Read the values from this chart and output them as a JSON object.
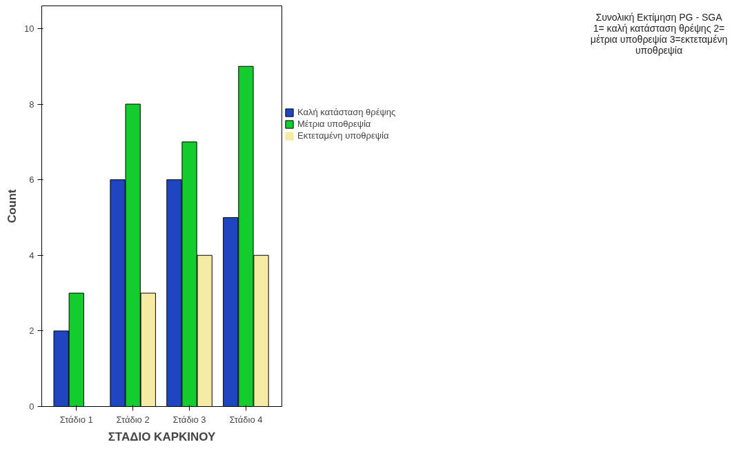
{
  "chart_data": {
    "type": "bar",
    "xlabel": "ΣΤΑΔΙΟ ΚΑΡΚΙΝΟΥ",
    "ylabel": "Count",
    "legend_title": "Συνολική Εκτίμηση PG - SGA 1= καλή κατάσταση θρέψης 2= μέτρια υποθρεψία 3=εκτεταμένη υποθρεψία",
    "categories": [
      "Στάδιο 1",
      "Στάδιο 2",
      "Στάδιο 3",
      "Στάδιο 4"
    ],
    "series": [
      {
        "name": "Καλή κατάσταση θρέψης",
        "color": "#1f46c0",
        "values": [
          2,
          6,
          6,
          5
        ]
      },
      {
        "name": "Μέτρια υποθρεψία",
        "color": "#13cc2e",
        "values": [
          3,
          8,
          7,
          9
        ]
      },
      {
        "name": "Εκτεταμένη υποθρεψία",
        "color": "#f5eba5",
        "values": [
          0,
          3,
          4,
          4
        ]
      }
    ],
    "ylim": [
      0,
      10.6
    ],
    "yticks": [
      0,
      2,
      4,
      6,
      8,
      10
    ],
    "grid": false,
    "legend": "top right"
  }
}
